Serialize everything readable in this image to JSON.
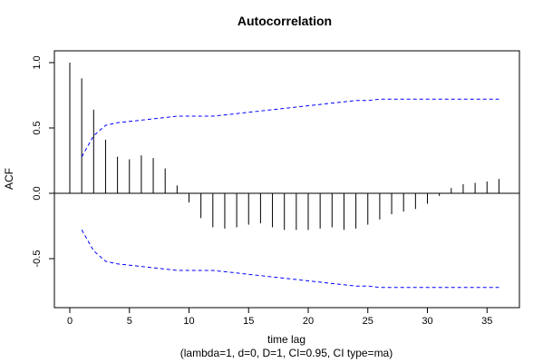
{
  "chart_data": {
    "type": "bar",
    "title": "Autocorrelation",
    "xlabel": "time lag",
    "subtitle": "(lambda=1, d=0, D=1, CI=0.95, CI type=ma)",
    "ylabel": "ACF",
    "xlim": [
      0,
      36
    ],
    "ylim": [
      -0.8,
      1.0
    ],
    "x_ticks": [
      0,
      5,
      10,
      15,
      20,
      25,
      30,
      35
    ],
    "y_ticks": [
      1.0,
      0.5,
      0.0,
      -0.5
    ],
    "y_tick_labels": [
      "1.0",
      "0.5",
      "0.0",
      "-0.5"
    ],
    "lags": [
      0,
      1,
      2,
      3,
      4,
      5,
      6,
      7,
      8,
      9,
      10,
      11,
      12,
      13,
      14,
      15,
      16,
      17,
      18,
      19,
      20,
      21,
      22,
      23,
      24,
      25,
      26,
      27,
      28,
      29,
      30,
      31,
      32,
      33,
      34,
      35,
      36
    ],
    "acf": [
      1.0,
      0.88,
      0.64,
      0.41,
      0.28,
      0.26,
      0.29,
      0.27,
      0.19,
      0.06,
      -0.07,
      -0.19,
      -0.26,
      -0.27,
      -0.26,
      -0.24,
      -0.23,
      -0.26,
      -0.28,
      -0.28,
      -0.28,
      -0.27,
      -0.26,
      -0.28,
      -0.27,
      -0.24,
      -0.2,
      -0.16,
      -0.14,
      -0.12,
      -0.08,
      -0.02,
      0.04,
      0.07,
      0.08,
      0.09,
      0.11
    ],
    "ci_lags": [
      1,
      2,
      3,
      4,
      5,
      6,
      7,
      8,
      9,
      10,
      11,
      12,
      13,
      14,
      15,
      16,
      17,
      18,
      19,
      20,
      21,
      22,
      23,
      24,
      25,
      26,
      27,
      28,
      29,
      30,
      31,
      32,
      33,
      34,
      35,
      36
    ],
    "ci_upper": [
      0.28,
      0.44,
      0.52,
      0.54,
      0.55,
      0.56,
      0.57,
      0.58,
      0.59,
      0.59,
      0.59,
      0.59,
      0.6,
      0.61,
      0.62,
      0.63,
      0.64,
      0.65,
      0.66,
      0.67,
      0.68,
      0.69,
      0.7,
      0.71,
      0.71,
      0.72,
      0.72,
      0.72,
      0.72,
      0.72,
      0.72,
      0.72,
      0.72,
      0.72,
      0.72,
      0.72
    ],
    "ci_color": "#0000ff",
    "bar_color": "#000000",
    "grid": false
  }
}
